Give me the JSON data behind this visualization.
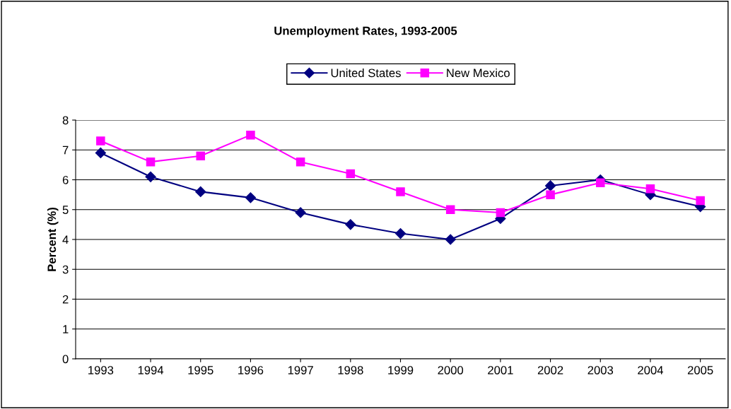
{
  "chart_data": {
    "type": "line",
    "title": "Unemployment Rates, 1993-2005",
    "ylabel": "Percent (%)",
    "categories": [
      "1993",
      "1994",
      "1995",
      "1996",
      "1997",
      "1998",
      "1999",
      "2000",
      "2001",
      "2002",
      "2003",
      "2004",
      "2005"
    ],
    "series": [
      {
        "name": "United States",
        "color": "#000080",
        "marker": "diamond",
        "values": [
          6.9,
          6.1,
          5.6,
          5.4,
          4.9,
          4.5,
          4.2,
          4.0,
          4.7,
          5.8,
          6.0,
          5.5,
          5.1
        ]
      },
      {
        "name": "New Mexico",
        "color": "#ff00ff",
        "marker": "square",
        "values": [
          7.3,
          6.6,
          6.8,
          7.5,
          6.6,
          6.2,
          5.6,
          5.0,
          4.9,
          5.5,
          5.9,
          5.7,
          5.3
        ]
      }
    ],
    "ylim": [
      0,
      8
    ],
    "yticks": [
      0,
      1,
      2,
      3,
      4,
      5,
      6,
      7,
      8
    ],
    "grid": "y",
    "legend": "top",
    "line_style": "solid"
  }
}
